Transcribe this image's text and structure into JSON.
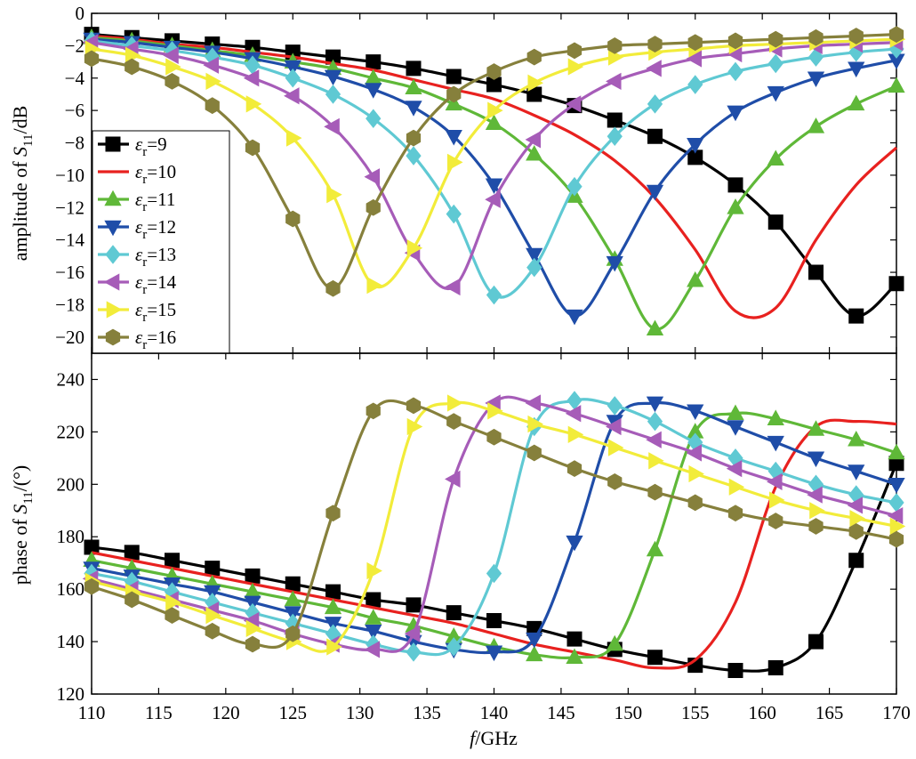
{
  "chart_data": [
    {
      "id": "amplitude",
      "type": "line",
      "ylabel_prefix": "amplitude of ",
      "ylabel_var": "S",
      "ylabel_sub": "11",
      "ylabel_suffix": "/dB",
      "xlim": [
        110,
        170
      ],
      "ylim": [
        -21,
        0
      ],
      "yticks": [
        0,
        -2,
        -4,
        -6,
        -8,
        -10,
        -12,
        -14,
        -16,
        -18,
        -20
      ],
      "series": [
        {
          "name": "9",
          "color": "#000000",
          "marker": "square",
          "x": [
            110,
            113,
            116,
            119,
            122,
            125,
            128,
            131,
            134,
            137,
            140,
            143,
            146,
            149,
            152,
            155,
            158,
            161,
            164,
            167,
            170
          ],
          "y": [
            -1.3,
            -1.5,
            -1.7,
            -1.9,
            -2.1,
            -2.4,
            -2.7,
            -3.0,
            -3.4,
            -3.9,
            -4.4,
            -5.0,
            -5.7,
            -6.6,
            -7.6,
            -8.9,
            -10.6,
            -12.9,
            -16.0,
            -18.7,
            -16.7
          ]
        },
        {
          "name": "10",
          "color": "#e8211f",
          "marker": "circle",
          "x": [
            110,
            113,
            116,
            119,
            122,
            125,
            128,
            131,
            134,
            137,
            140,
            143,
            146,
            149,
            152,
            155,
            158,
            161,
            164,
            167,
            170
          ],
          "y": [
            -1.4,
            -1.6,
            -1.9,
            -2.1,
            -2.4,
            -2.7,
            -3.1,
            -3.5,
            -4.1,
            -4.7,
            -5.3,
            -6.3,
            -7.5,
            -9.1,
            -11.4,
            -14.6,
            -18.4,
            -18.2,
            -14.0,
            -10.6,
            -8.3
          ]
        },
        {
          "name": "11",
          "color": "#5fb838",
          "marker": "triangle-up",
          "x": [
            110,
            113,
            116,
            119,
            122,
            125,
            128,
            131,
            134,
            137,
            140,
            143,
            146,
            149,
            152,
            155,
            158,
            161,
            164,
            167,
            170
          ],
          "y": [
            -1.5,
            -1.7,
            -2.0,
            -2.3,
            -2.6,
            -3.0,
            -3.4,
            -4.0,
            -4.6,
            -5.6,
            -6.8,
            -8.7,
            -11.3,
            -15.2,
            -19.5,
            -16.5,
            -12.0,
            -9.0,
            -7.0,
            -5.6,
            -4.5
          ]
        },
        {
          "name": "12",
          "color": "#1f4da8",
          "marker": "triangle-down",
          "x": [
            110,
            113,
            116,
            119,
            122,
            125,
            128,
            131,
            134,
            137,
            140,
            143,
            146,
            149,
            152,
            155,
            158,
            161,
            164,
            167,
            170
          ],
          "y": [
            -1.6,
            -1.8,
            -2.1,
            -2.4,
            -2.8,
            -3.3,
            -3.9,
            -4.7,
            -5.8,
            -7.6,
            -10.6,
            -14.9,
            -18.7,
            -15.4,
            -11.0,
            -8.1,
            -6.1,
            -4.9,
            -4.0,
            -3.4,
            -2.9
          ]
        },
        {
          "name": "13",
          "color": "#5fc9d3",
          "marker": "diamond",
          "x": [
            110,
            113,
            116,
            119,
            122,
            125,
            128,
            131,
            134,
            137,
            140,
            143,
            146,
            149,
            152,
            155,
            158,
            161,
            164,
            167,
            170
          ],
          "y": [
            -1.7,
            -2.0,
            -2.3,
            -2.7,
            -3.2,
            -4.0,
            -5.0,
            -6.5,
            -8.8,
            -12.4,
            -17.4,
            -15.7,
            -10.7,
            -7.6,
            -5.6,
            -4.4,
            -3.6,
            -3.1,
            -2.7,
            -2.4,
            -2.2
          ]
        },
        {
          "name": "14",
          "color": "#a65cb8",
          "marker": "triangle-left",
          "x": [
            110,
            113,
            116,
            119,
            122,
            125,
            128,
            131,
            134,
            137,
            140,
            143,
            146,
            149,
            152,
            155,
            158,
            161,
            164,
            167,
            170
          ],
          "y": [
            -1.8,
            -2.2,
            -2.6,
            -3.2,
            -4.0,
            -5.1,
            -7.0,
            -10.1,
            -14.8,
            -16.9,
            -11.5,
            -7.8,
            -5.6,
            -4.2,
            -3.4,
            -2.8,
            -2.5,
            -2.2,
            -2.0,
            -1.9,
            -1.8
          ]
        },
        {
          "name": "15",
          "color": "#f2ec3a",
          "marker": "triangle-right",
          "x": [
            110,
            113,
            116,
            119,
            122,
            125,
            128,
            131,
            134,
            137,
            140,
            143,
            146,
            149,
            152,
            155,
            158,
            161,
            164,
            167,
            170
          ],
          "y": [
            -2.2,
            -2.6,
            -3.3,
            -4.2,
            -5.6,
            -7.7,
            -11.2,
            -16.8,
            -14.5,
            -9.2,
            -6.0,
            -4.3,
            -3.3,
            -2.7,
            -2.4,
            -2.2,
            -2.0,
            -1.9,
            -1.8,
            -1.7,
            -1.6
          ]
        },
        {
          "name": "16",
          "color": "#86803c",
          "marker": "hexagon",
          "x": [
            110,
            113,
            116,
            119,
            122,
            125,
            128,
            131,
            134,
            137,
            140,
            143,
            146,
            149,
            152,
            155,
            158,
            161,
            164,
            167,
            170
          ],
          "y": [
            -2.8,
            -3.3,
            -4.2,
            -5.7,
            -8.3,
            -12.7,
            -17.0,
            -12.0,
            -7.7,
            -5.0,
            -3.6,
            -2.7,
            -2.3,
            -2.0,
            -1.9,
            -1.8,
            -1.7,
            -1.6,
            -1.5,
            -1.4,
            -1.3
          ]
        }
      ]
    },
    {
      "id": "phase",
      "type": "line",
      "ylabel_prefix": "phase of ",
      "ylabel_var": "S",
      "ylabel_sub": "11",
      "ylabel_suffix": "/(°)",
      "xlabel_var": "f",
      "xlabel_suffix": "/GHz",
      "xlim": [
        110,
        170
      ],
      "ylim": [
        120,
        250
      ],
      "xticks": [
        110,
        115,
        120,
        125,
        130,
        135,
        140,
        145,
        150,
        155,
        160,
        165,
        170
      ],
      "yticks": [
        120,
        140,
        160,
        180,
        200,
        220,
        240
      ],
      "series": [
        {
          "name": "9",
          "color": "#000000",
          "marker": "square",
          "x": [
            110,
            113,
            116,
            119,
            122,
            125,
            128,
            131,
            134,
            137,
            140,
            143,
            146,
            149,
            152,
            155,
            158,
            161,
            164,
            167,
            170
          ],
          "y": [
            176,
            174,
            171,
            168,
            165,
            162,
            159,
            156,
            154,
            151,
            148,
            145,
            141,
            137,
            134,
            131,
            129,
            130,
            140,
            171,
            208
          ]
        },
        {
          "name": "10",
          "color": "#e8211f",
          "marker": "circle",
          "x": [
            110,
            113,
            116,
            119,
            122,
            125,
            128,
            131,
            134,
            137,
            140,
            143,
            146,
            149,
            152,
            155,
            158,
            161,
            164,
            167,
            170
          ],
          "y": [
            174,
            171,
            168,
            165,
            162,
            159,
            156,
            153,
            150,
            147,
            143,
            139,
            136,
            133,
            130,
            133,
            155,
            199,
            222,
            224,
            223
          ]
        },
        {
          "name": "11",
          "color": "#5fb838",
          "marker": "triangle-up",
          "x": [
            110,
            113,
            116,
            119,
            122,
            125,
            128,
            131,
            134,
            137,
            140,
            143,
            146,
            149,
            152,
            155,
            158,
            161,
            164,
            167,
            170
          ],
          "y": [
            171,
            168,
            165,
            162,
            159,
            156,
            153,
            149,
            146,
            142,
            138,
            135,
            134,
            139,
            175,
            220,
            227,
            225,
            221,
            217,
            212
          ]
        },
        {
          "name": "12",
          "color": "#1f4da8",
          "marker": "triangle-down",
          "x": [
            110,
            113,
            116,
            119,
            122,
            125,
            128,
            131,
            134,
            137,
            140,
            143,
            146,
            149,
            152,
            155,
            158,
            161,
            164,
            167,
            170
          ],
          "y": [
            168,
            165,
            162,
            159,
            155,
            151,
            147,
            144,
            140,
            137,
            136,
            141,
            178,
            224,
            231,
            228,
            222,
            216,
            210,
            205,
            200
          ]
        },
        {
          "name": "13",
          "color": "#5fc9d3",
          "marker": "diamond",
          "x": [
            110,
            113,
            116,
            119,
            122,
            125,
            128,
            131,
            134,
            137,
            140,
            143,
            146,
            149,
            152,
            155,
            158,
            161,
            164,
            167,
            170
          ],
          "y": [
            166,
            163,
            159,
            155,
            151,
            147,
            143,
            139,
            136,
            138,
            166,
            222,
            232,
            230,
            224,
            216,
            210,
            205,
            200,
            196,
            193
          ]
        },
        {
          "name": "14",
          "color": "#a65cb8",
          "marker": "triangle-left",
          "x": [
            110,
            113,
            116,
            119,
            122,
            125,
            128,
            131,
            134,
            137,
            140,
            143,
            146,
            149,
            152,
            155,
            158,
            161,
            164,
            167,
            170
          ],
          "y": [
            164,
            160,
            156,
            152,
            148,
            143,
            139,
            137,
            143,
            202,
            231,
            231,
            227,
            222,
            217,
            212,
            206,
            201,
            196,
            192,
            188
          ]
        },
        {
          "name": "15",
          "color": "#f2ec3a",
          "marker": "triangle-right",
          "x": [
            110,
            113,
            116,
            119,
            122,
            125,
            128,
            131,
            134,
            137,
            140,
            143,
            146,
            149,
            152,
            155,
            158,
            161,
            164,
            167,
            170
          ],
          "y": [
            163,
            159,
            155,
            150,
            145,
            140,
            138,
            167,
            222,
            231,
            228,
            223,
            219,
            214,
            209,
            204,
            199,
            194,
            190,
            187,
            184
          ]
        },
        {
          "name": "16",
          "color": "#86803c",
          "marker": "hexagon",
          "x": [
            110,
            113,
            116,
            119,
            122,
            125,
            128,
            131,
            134,
            137,
            140,
            143,
            146,
            149,
            152,
            155,
            158,
            161,
            164,
            167,
            170
          ],
          "y": [
            161,
            156,
            150,
            144,
            139,
            143,
            189,
            228,
            230,
            224,
            218,
            212,
            206,
            201,
            197,
            193,
            189,
            186,
            184,
            182,
            179
          ]
        }
      ]
    }
  ],
  "legend": {
    "symbol": "ε",
    "subscript": "r",
    "entries": [
      "=9",
      "=10",
      "=11",
      "=12",
      "=13",
      "=14",
      "=15",
      "=16"
    ]
  }
}
